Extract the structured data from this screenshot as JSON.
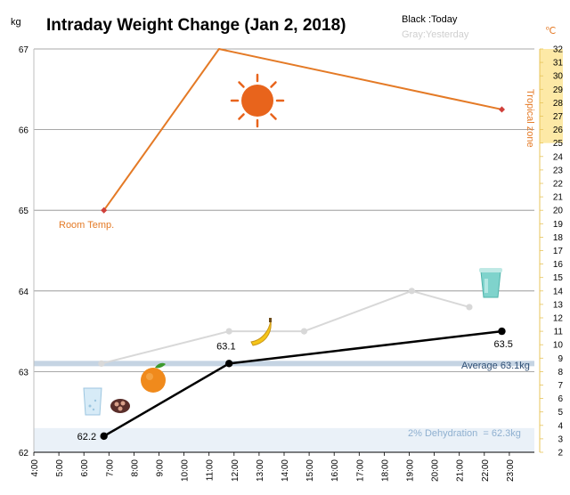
{
  "chart_data": {
    "type": "line",
    "title": "Intraday Weight Change (Jan 2, 2018)",
    "legend": {
      "today_label": "Black :Today",
      "yesterday_label": "Gray:Yesterday",
      "placement": "top-right"
    },
    "left_axis": {
      "unit": "kg",
      "ylim": [
        62,
        67
      ],
      "ticks": [
        "62",
        "63",
        "64",
        "65",
        "66",
        "67"
      ]
    },
    "right_axis": {
      "unit": "℃",
      "ylim": [
        2,
        32
      ],
      "ticks": [
        "2",
        "3",
        "4",
        "5",
        "6",
        "7",
        "8",
        "9",
        "10",
        "11",
        "12",
        "13",
        "14",
        "15",
        "16",
        "17",
        "18",
        "19",
        "20",
        "21",
        "22",
        "23",
        "24",
        "25",
        "26",
        "27",
        "28",
        "29",
        "30",
        "31",
        "32"
      ]
    },
    "x_axis": {
      "xlim": [
        4,
        24
      ],
      "ticks": [
        "4:00",
        "5:00",
        "6:00",
        "7:00",
        "8:00",
        "9:00",
        "10:00",
        "11:00",
        "12:00",
        "13:00",
        "14:00",
        "15:00",
        "16:00",
        "17:00",
        "18:00",
        "19:00",
        "20:00",
        "21:00",
        "22:00",
        "23:00"
      ]
    },
    "series": [
      {
        "name": "Today",
        "color": "#000000",
        "points": [
          {
            "x": 6.8,
            "y": 62.2,
            "label": "62.2"
          },
          {
            "x": 11.8,
            "y": 63.1,
            "label": "63.1"
          },
          {
            "x": 22.7,
            "y": 63.5,
            "label": "63.5"
          }
        ]
      },
      {
        "name": "Yesterday",
        "color": "#d8d8d8",
        "points": [
          {
            "x": 6.7,
            "y": 63.1
          },
          {
            "x": 11.8,
            "y": 63.5
          },
          {
            "x": 14.8,
            "y": 63.5
          },
          {
            "x": 19.1,
            "y": 64.0
          },
          {
            "x": 21.4,
            "y": 63.8
          }
        ]
      },
      {
        "name": "Room Temp.",
        "axis": "right",
        "color": "#e47a26",
        "points": [
          {
            "x": 6.8,
            "y": 20
          },
          {
            "x": 11.4,
            "y": 32.6
          },
          {
            "x": 22.7,
            "y": 27.5
          }
        ]
      }
    ],
    "annotations": {
      "room_temp_label": "Room Temp.",
      "tropical_zone_label": "Tropical zone",
      "average_label": "Average 63.1kg",
      "average_value": 63.1,
      "dehydration_label": "2% Dehydration  = 62.3kg",
      "dehydration_value": 62.3,
      "tropical_zone_min": 25
    },
    "grid": true,
    "icons": [
      "sun-icon",
      "banana-icon",
      "orange-icon",
      "water-glass-icon",
      "pills-icon",
      "cup-icon"
    ],
    "colors": {
      "today": "#000000",
      "yesterday": "#d8d8d8",
      "temperature": "#e47a26",
      "tropical_zone": "#fde9a6",
      "average_band": "#c5d4e3",
      "dehydration_band": "#eaf1f8"
    }
  }
}
